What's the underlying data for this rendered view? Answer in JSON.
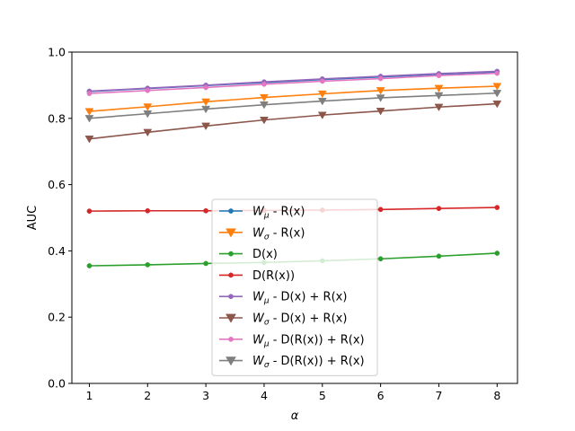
{
  "chart_data": {
    "type": "line",
    "title": "",
    "xlabel": "α",
    "ylabel": "AUC",
    "x": [
      1,
      2,
      3,
      4,
      5,
      6,
      7,
      8
    ],
    "xlim": [
      0.7,
      8.35
    ],
    "ylim": [
      0.0,
      1.0
    ],
    "xticks": [
      "1",
      "2",
      "3",
      "4",
      "5",
      "6",
      "7",
      "8"
    ],
    "yticks": [
      "0.0",
      "0.2",
      "0.4",
      "0.6",
      "0.8",
      "1.0"
    ],
    "grid": false,
    "legend_position": "bottom-center",
    "series": [
      {
        "name": "W_μ - R(x)",
        "label_main": "W",
        "label_sub": "μ",
        "label_rest": " - R(x)",
        "color": "#1f77b4",
        "marker": "circle",
        "values": [
          0.881,
          0.89,
          0.899,
          0.908,
          0.917,
          0.925,
          0.933,
          0.94
        ]
      },
      {
        "name": "W_σ - R(x)",
        "label_main": "W",
        "label_sub": "σ",
        "label_rest": " - R(x)",
        "color": "#ff7f0e",
        "marker": "triangle-down",
        "values": [
          0.821,
          0.835,
          0.85,
          0.863,
          0.874,
          0.884,
          0.891,
          0.897
        ]
      },
      {
        "name": "D(x)",
        "label_main": "D(x)",
        "label_sub": "",
        "label_rest": "",
        "color": "#2ca02c",
        "marker": "circle",
        "values": [
          0.355,
          0.358,
          0.362,
          0.365,
          0.37,
          0.376,
          0.384,
          0.393
        ]
      },
      {
        "name": "D(R(x))",
        "label_main": "D(R(x))",
        "label_sub": "",
        "label_rest": "",
        "color": "#d62728",
        "marker": "circle",
        "values": [
          0.52,
          0.521,
          0.521,
          0.522,
          0.523,
          0.525,
          0.528,
          0.531
        ]
      },
      {
        "name": "W_μ - D(x) + R(x)",
        "label_main": "W",
        "label_sub": "μ",
        "label_rest": " - D(x) + R(x)",
        "color": "#9467bd",
        "marker": "circle",
        "values": [
          0.882,
          0.891,
          0.9,
          0.91,
          0.919,
          0.927,
          0.935,
          0.942
        ]
      },
      {
        "name": "W_σ - D(x) + R(x)",
        "label_main": "W",
        "label_sub": "σ",
        "label_rest": " - D(x) + R(x)",
        "color": "#8c564b",
        "marker": "triangle-down",
        "values": [
          0.738,
          0.758,
          0.777,
          0.795,
          0.81,
          0.822,
          0.834,
          0.844
        ]
      },
      {
        "name": "W_μ - D(R(x)) + R(x)",
        "label_main": "W",
        "label_sub": "μ",
        "label_rest": " - D(R(x)) + R(x)",
        "color": "#e377c2",
        "marker": "circle",
        "values": [
          0.875,
          0.884,
          0.893,
          0.903,
          0.912,
          0.92,
          0.929,
          0.936
        ]
      },
      {
        "name": "W_σ - D(R(x)) + R(x)",
        "label_main": "W",
        "label_sub": "σ",
        "label_rest": " - D(R(x)) + R(x)",
        "color": "#7f7f7f",
        "marker": "triangle-down",
        "values": [
          0.8,
          0.814,
          0.828,
          0.841,
          0.852,
          0.862,
          0.869,
          0.876
        ]
      }
    ]
  }
}
